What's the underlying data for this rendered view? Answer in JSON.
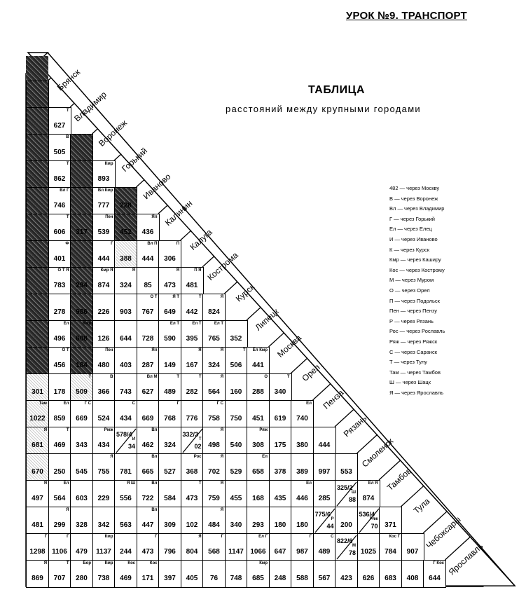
{
  "header": {
    "lesson": "УРОК №9. ТРАНСПОРТ"
  },
  "table": {
    "title": "ТАБЛИЦА",
    "subtitle": "расстояний между крупными городами",
    "cities": [
      "",
      "Брянск",
      "Владимир",
      "Воронеж",
      "Горький",
      "Иваново",
      "Калинин",
      "Калуга",
      "Кострома",
      "Курск",
      "Липецк",
      "Москва",
      "Орел",
      "Пенза",
      "Рязань",
      "Смоленск",
      "Тамбов",
      "Тула",
      "Чебоксары",
      "Ярославль"
    ],
    "rows": [
      {
        "city": "Брянск",
        "values": [
          ""
        ],
        "notes": [
          ""
        ]
      },
      {
        "city": "Владимир",
        "values": [
          "",
          "627"
        ],
        "notes": [
          "",
          "Т"
        ]
      },
      {
        "city": "Воронеж",
        "values": [
          "",
          "505",
          ""
        ],
        "notes": [
          "",
          "В",
          ""
        ]
      },
      {
        "city": "Горький",
        "values": [
          "",
          "862",
          "",
          "893"
        ],
        "notes": [
          "",
          "Т",
          "",
          "Кмр"
        ]
      },
      {
        "city": "Иваново",
        "values": [
          "",
          "746",
          "",
          "777",
          "228"
        ],
        "notes": [
          "",
          "Вл Г",
          "",
          "Вл Кмр",
          ""
        ]
      },
      {
        "city": "Калинин",
        "values": [
          "",
          "606",
          "317",
          "539",
          "452",
          "436"
        ],
        "notes": [
          "",
          "Т",
          "",
          "Пен",
          "",
          "Ял"
        ]
      },
      {
        "city": "Калуга",
        "values": [
          "",
          "401",
          "",
          "444",
          "388",
          "444",
          "306"
        ],
        "notes": [
          "",
          "Ф",
          "",
          "Г",
          "",
          "Вл П",
          "П"
        ]
      },
      {
        "city": "Кострома",
        "values": [
          "",
          "783",
          "294",
          "874",
          "324",
          "85",
          "473",
          "481"
        ],
        "notes": [
          "",
          "О Т Я",
          "",
          "Кмр Я",
          "Я",
          "",
          "Я",
          "П Я"
        ]
      },
      {
        "city": "Курск",
        "values": [
          "",
          "278",
          "986",
          "226",
          "903",
          "767",
          "649",
          "442",
          "824"
        ],
        "notes": [
          "",
          "",
          "",
          "",
          "",
          "О Т",
          "Я Т",
          "Т",
          "Я"
        ]
      },
      {
        "city": "Липецк",
        "values": [
          "",
          "496",
          "608",
          "126",
          "644",
          "728",
          "590",
          "395",
          "765",
          "352"
        ],
        "notes": [
          "",
          "Ел",
          "Кмр",
          "",
          "",
          "",
          "Ел Т",
          "Ел Т",
          "Ел Т",
          ""
        ]
      },
      {
        "city": "Москва",
        "values": [
          "",
          "456",
          "184",
          "480",
          "403",
          "287",
          "149",
          "167",
          "324",
          "506",
          "441"
        ],
        "notes": [
          "",
          "О Т",
          "",
          "Пен",
          "",
          "Ял",
          "",
          "Я",
          "Я",
          "Т",
          "Ел Кмр"
        ]
      },
      {
        "city": "Орел",
        "values": [
          "301",
          "178",
          "509",
          "366",
          "743",
          "627",
          "489",
          "282",
          "564",
          "160",
          "288",
          "340"
        ],
        "notes": [
          "",
          "",
          "Т",
          "В",
          "",
          "Вл М",
          "Т",
          "Т",
          "Я",
          "",
          "О",
          "Т"
        ]
      },
      {
        "city": "Пенза",
        "values": [
          "1022",
          "859",
          "669",
          "524",
          "434",
          "669",
          "768",
          "776",
          "758",
          "750",
          "451",
          "619",
          "740"
        ],
        "notes": [
          "Там",
          "Ел",
          "Г С",
          "",
          "С",
          "",
          "Г",
          "",
          "Г С",
          "",
          "",
          "",
          "Ел"
        ]
      },
      {
        "city": "Рязань",
        "values": [
          "681",
          "469",
          "343",
          "434",
          "578/434",
          "462",
          "324",
          "332/302",
          "498",
          "540",
          "308",
          "175",
          "380",
          "444"
        ],
        "notes": [
          "Я",
          "Т",
          "",
          "Рмж",
          "И",
          "Вл",
          "",
          "Т",
          "Я",
          "",
          "Ряж",
          "",
          "",
          ""
        ]
      },
      {
        "city": "Смоленск",
        "values": [
          "670",
          "250",
          "545",
          "755",
          "781",
          "665",
          "527",
          "368",
          "702",
          "529",
          "658",
          "378",
          "389",
          "997",
          "553"
        ],
        "notes": [
          "",
          "",
          "",
          "Я",
          "",
          "Вл",
          "",
          "Рос",
          "Я",
          "",
          "Ел",
          "",
          "",
          "",
          ""
        ]
      },
      {
        "city": "Тамбов",
        "values": [
          "497",
          "564",
          "603",
          "229",
          "556",
          "722",
          "584",
          "473",
          "759",
          "455",
          "168",
          "435",
          "446",
          "285",
          "325/288",
          "874"
        ],
        "notes": [
          "Я",
          "Ел",
          "",
          "",
          "Я Ш",
          "Вл",
          "",
          "Т",
          "Я",
          "",
          "",
          "",
          "Ел",
          "",
          "Ш",
          "Ел Я"
        ]
      },
      {
        "city": "Тула",
        "values": [
          "481",
          "299",
          "328",
          "342",
          "563",
          "447",
          "309",
          "102",
          "484",
          "340",
          "293",
          "180",
          "180",
          "775/644",
          "200",
          "536/470",
          "371"
        ],
        "notes": [
          "",
          "Я",
          "",
          "",
          "",
          "Вл",
          "",
          "",
          "Я",
          "",
          "",
          "",
          "",
          "Р",
          "",
          "Ряж",
          ""
        ]
      },
      {
        "city": "Чебоксары",
        "values": [
          "1298",
          "1106",
          "479",
          "1137",
          "244",
          "473",
          "796",
          "804",
          "568",
          "1147",
          "1066",
          "647",
          "987",
          "489",
          "822/678",
          "1025",
          "784",
          "907"
        ],
        "notes": [
          "Г",
          "Г",
          "",
          "Кмр",
          "",
          "Г",
          "",
          "Я",
          "Г",
          "",
          "Ел Г",
          "",
          "Г",
          "С",
          "М",
          "",
          "Кос Г",
          ""
        ]
      },
      {
        "city": "Ярославль",
        "values": [
          "869",
          "707",
          "280",
          "738",
          "469",
          "171",
          "397",
          "405",
          "76",
          "748",
          "685",
          "248",
          "588",
          "567",
          "423",
          "626",
          "683",
          "408",
          "644"
        ],
        "notes": [
          "Я",
          "Т",
          "Бор",
          "Кмр",
          "Кос",
          "Кос",
          "",
          "",
          "",
          "",
          "Кмр",
          "",
          "",
          "",
          "",
          "",
          "",
          "",
          "Г Кос"
        ]
      }
    ]
  },
  "legend": [
    "482 — через Москву",
    "В — через Воронеж",
    "Вл — через Владимир",
    "Г — через Горький",
    "Ел — через Елец",
    "И — через Иваново",
    "К — через Курск",
    "Кмр — через Каширу",
    "Кос — через Кострому",
    "М — через Муром",
    "О — через Орел",
    "П — через Подольск",
    "Пен — через Пензу",
    "Р — через Рязань",
    "Рос — через Рославль",
    "Ряж — через Ряжск",
    "С — через Саранск",
    "Т — через Тулу",
    "Там — через Тамбов",
    "Ш — через Шацк",
    "Я — через Ярославль"
  ]
}
